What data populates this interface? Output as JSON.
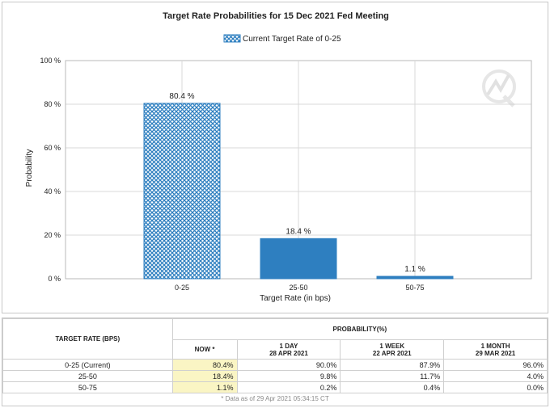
{
  "chart_data": {
    "type": "bar",
    "title": "Target Rate Probabilities for 15 Dec 2021 Fed Meeting",
    "legend": "Current Target Rate of 0-25",
    "legend_position": "top-center",
    "xlabel": "Target Rate (in bps)",
    "ylabel": "Probability",
    "categories": [
      "0-25",
      "25-50",
      "50-75"
    ],
    "values": [
      80.4,
      18.4,
      1.1
    ],
    "value_labels": [
      "80.4 %",
      "18.4 %",
      "1.1 %"
    ],
    "ylim": [
      0,
      100
    ],
    "yticks": [
      0,
      20,
      40,
      60,
      80,
      100
    ],
    "ytick_labels": [
      "0 %",
      "20 %",
      "40 %",
      "60 %",
      "80 %",
      "100 %"
    ],
    "highlight_pattern": "crosshatch",
    "colors": {
      "bar": "#2e7fc0",
      "hatch_bg": "#ffffff",
      "grid": "#d9d9d9"
    },
    "grid": true
  },
  "table": {
    "target_rate_header": "TARGET RATE (BPS)",
    "probability_header": "PROBABILITY(%)",
    "columns": [
      {
        "line1": "NOW *",
        "line2": ""
      },
      {
        "line1": "1 DAY",
        "line2": "28 APR 2021"
      },
      {
        "line1": "1 WEEK",
        "line2": "22 APR 2021"
      },
      {
        "line1": "1 MONTH",
        "line2": "29 MAR 2021"
      }
    ],
    "rows": [
      {
        "rate": "0-25 (Current)",
        "values": [
          "80.4%",
          "90.0%",
          "87.9%",
          "96.0%"
        ]
      },
      {
        "rate": "25-50",
        "values": [
          "18.4%",
          "9.8%",
          "11.7%",
          "4.0%"
        ]
      },
      {
        "rate": "50-75",
        "values": [
          "1.1%",
          "0.2%",
          "0.4%",
          "0.0%"
        ]
      }
    ],
    "footnote": "* Data as of 29 Apr 2021 05:34:15 CT"
  },
  "watermark_icon": "q-logo-icon"
}
